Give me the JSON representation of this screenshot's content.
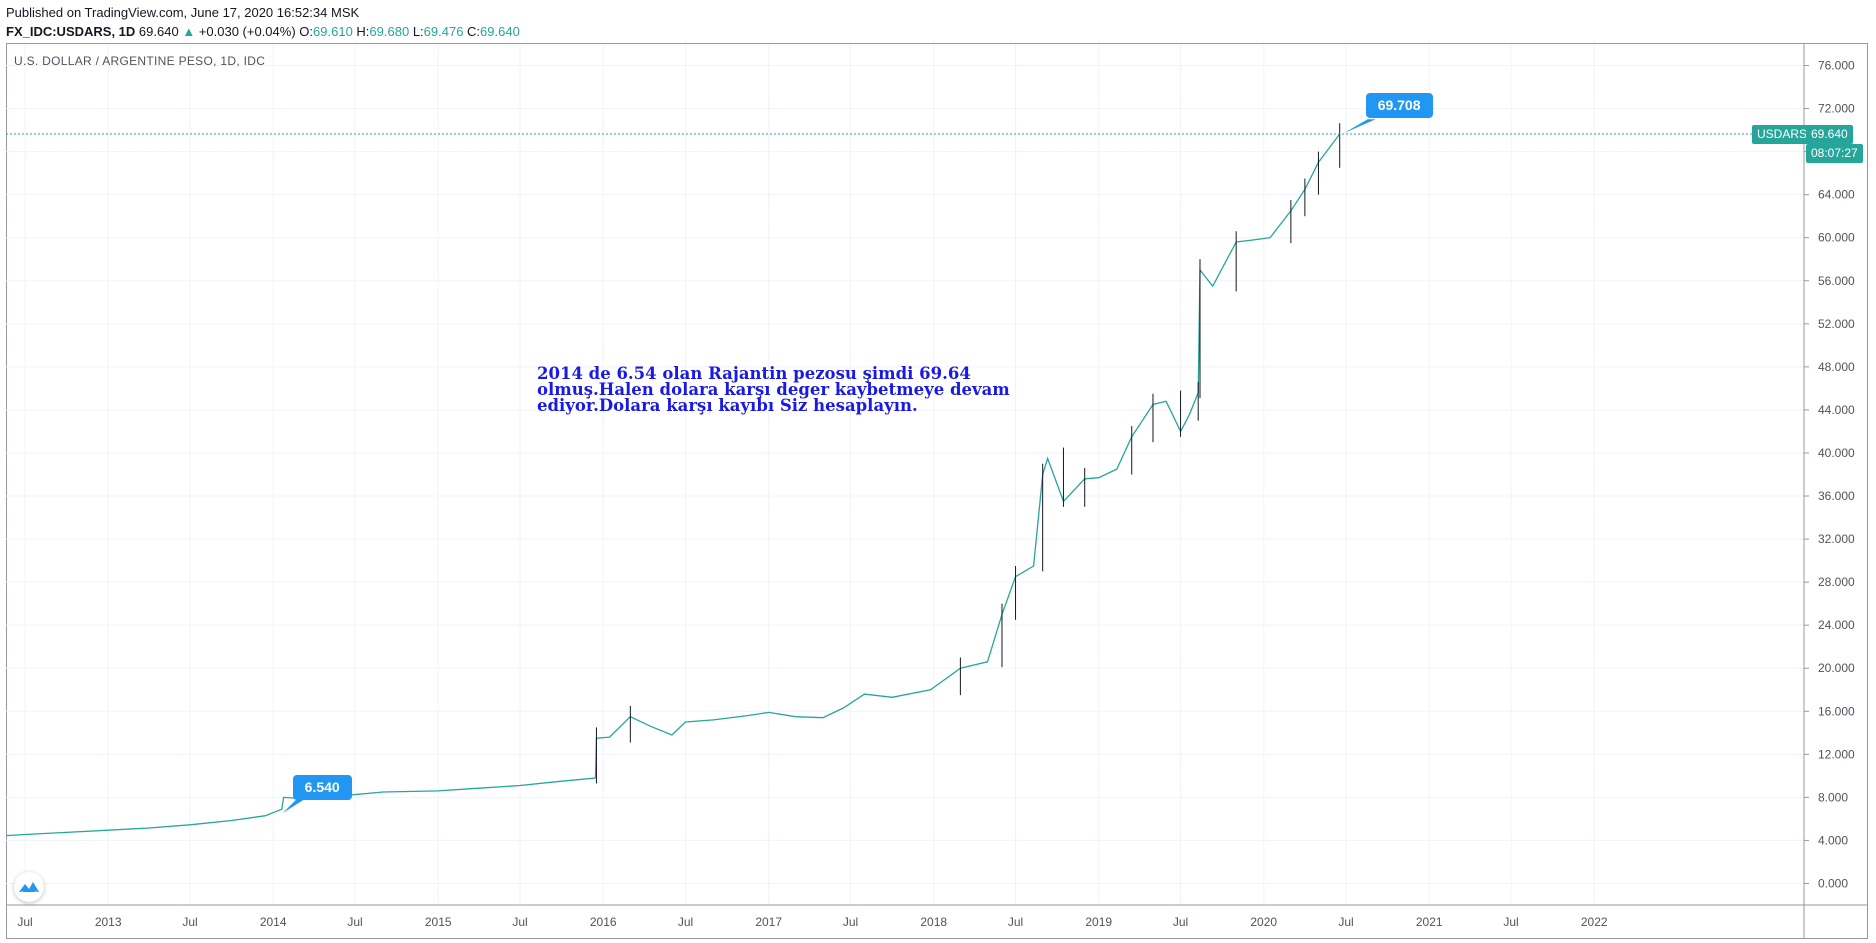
{
  "header": {
    "published": "Published on TradingView.com, June 17, 2020 16:52:34 MSK",
    "symbol": "FX_IDC:USDARS, 1D",
    "last": "69.640",
    "arrow": "▲",
    "change": "+0.030 (+0.04%)",
    "o_label": "O:",
    "o_val": "69.610",
    "h_label": "H:",
    "h_val": "69.680",
    "l_label": "L:",
    "l_val": "69.476",
    "c_label": "C:",
    "c_val": "69.640"
  },
  "chart_title": "U.S. DOLLAR / ARGENTINE PESO, 1D, IDC",
  "annotation": {
    "lines": [
      "2014 de   6.54 olan Rajantin pezosu şimdi 69.64",
      "olmuş.Halen dolara karşı deger kaybetmeye devam",
      "ediyor.Dolara karşı kayıbı Siz hesaplayın."
    ]
  },
  "callouts": {
    "low": "6.540",
    "high": "69.708"
  },
  "price_tags": {
    "symbol": "USDARS",
    "price": "69.640",
    "countdown": "08:07:27"
  },
  "logo": "tradingview-logo-icon",
  "colors": {
    "line": "#26a69a",
    "up": "#26a69a",
    "down": "#ef5350",
    "callout": "#2196f3",
    "annotation": "#1a1ae6",
    "grid": "#f0f3fa"
  },
  "chart_data": {
    "type": "line",
    "title": "U.S. DOLLAR / ARGENTINE PESO, 1D, IDC",
    "xlabel": "",
    "ylabel": "",
    "ylim": [
      -2,
      78
    ],
    "xlim": [
      "2012-05-20",
      "2023-04-10"
    ],
    "y_ticks": [
      "76.000",
      "72.000",
      "68.000",
      "64.000",
      "60.000",
      "56.000",
      "52.000",
      "48.000",
      "44.000",
      "40.000",
      "36.000",
      "32.000",
      "28.000",
      "24.000",
      "20.000",
      "16.000",
      "12.000",
      "8.000",
      "4.000",
      "0.000"
    ],
    "y_tick_values": [
      76,
      72,
      68,
      64,
      60,
      56,
      52,
      48,
      44,
      40,
      36,
      32,
      28,
      24,
      20,
      16,
      12,
      8,
      4,
      0
    ],
    "x_ticks": [
      {
        "label": "Jul",
        "date": "2012-07-01"
      },
      {
        "label": "2013",
        "date": "2013-01-01"
      },
      {
        "label": "Jul",
        "date": "2013-07-01"
      },
      {
        "label": "2014",
        "date": "2014-01-01"
      },
      {
        "label": "Jul",
        "date": "2014-07-01"
      },
      {
        "label": "2015",
        "date": "2015-01-01"
      },
      {
        "label": "Jul",
        "date": "2015-07-01"
      },
      {
        "label": "2016",
        "date": "2016-01-01"
      },
      {
        "label": "Jul",
        "date": "2016-07-01"
      },
      {
        "label": "2017",
        "date": "2017-01-01"
      },
      {
        "label": "Jul",
        "date": "2017-07-01"
      },
      {
        "label": "2018",
        "date": "2018-01-01"
      },
      {
        "label": "Jul",
        "date": "2018-07-01"
      },
      {
        "label": "2019",
        "date": "2019-01-01"
      },
      {
        "label": "Jul",
        "date": "2019-07-01"
      },
      {
        "label": "2020",
        "date": "2020-01-01"
      },
      {
        "label": "Jul",
        "date": "2020-07-01"
      },
      {
        "label": "2021",
        "date": "2021-01-01"
      },
      {
        "label": "Jul",
        "date": "2021-07-01"
      },
      {
        "label": "2022",
        "date": "2022-01-01"
      }
    ],
    "series": [
      {
        "points": [
          [
            "2012-05-20",
            4.45
          ],
          [
            "2012-07-01",
            4.55
          ],
          [
            "2012-10-01",
            4.75
          ],
          [
            "2013-01-01",
            4.95
          ],
          [
            "2013-04-01",
            5.15
          ],
          [
            "2013-07-01",
            5.45
          ],
          [
            "2013-10-01",
            5.85
          ],
          [
            "2013-12-15",
            6.3
          ],
          [
            "2014-01-20",
            6.9
          ],
          [
            "2014-01-24",
            8.0
          ],
          [
            "2014-03-01",
            7.9
          ],
          [
            "2014-06-01",
            8.15
          ],
          [
            "2014-09-01",
            8.5
          ],
          [
            "2015-01-01",
            8.6
          ],
          [
            "2015-04-01",
            8.85
          ],
          [
            "2015-07-01",
            9.1
          ],
          [
            "2015-10-01",
            9.5
          ],
          [
            "2015-12-15",
            9.8
          ],
          [
            "2015-12-17",
            13.5
          ],
          [
            "2016-01-15",
            13.6
          ],
          [
            "2016-03-01",
            15.5
          ],
          [
            "2016-04-15",
            14.6
          ],
          [
            "2016-06-01",
            13.8
          ],
          [
            "2016-07-01",
            15.0
          ],
          [
            "2016-09-01",
            15.2
          ],
          [
            "2016-11-15",
            15.6
          ],
          [
            "2017-01-01",
            15.9
          ],
          [
            "2017-03-01",
            15.5
          ],
          [
            "2017-05-01",
            15.4
          ],
          [
            "2017-06-15",
            16.3
          ],
          [
            "2017-08-01",
            17.6
          ],
          [
            "2017-10-01",
            17.3
          ],
          [
            "2017-12-25",
            18.0
          ],
          [
            "2018-03-01",
            20.0
          ],
          [
            "2018-04-30",
            20.6
          ],
          [
            "2018-06-01",
            25.0
          ],
          [
            "2018-07-01",
            28.5
          ],
          [
            "2018-08-10",
            29.5
          ],
          [
            "2018-08-30",
            38.0
          ],
          [
            "2018-09-10",
            39.5
          ],
          [
            "2018-10-15",
            35.5
          ],
          [
            "2018-12-01",
            37.6
          ],
          [
            "2019-01-01",
            37.7
          ],
          [
            "2019-02-10",
            38.5
          ],
          [
            "2019-03-15",
            41.5
          ],
          [
            "2019-05-01",
            44.5
          ],
          [
            "2019-05-30",
            44.8
          ],
          [
            "2019-07-01",
            42.0
          ],
          [
            "2019-07-20",
            43.5
          ],
          [
            "2019-08-09",
            45.6
          ],
          [
            "2019-08-13",
            57.0
          ],
          [
            "2019-09-10",
            55.5
          ],
          [
            "2019-11-01",
            59.6
          ],
          [
            "2019-12-10",
            59.8
          ],
          [
            "2020-01-15",
            60.0
          ],
          [
            "2020-03-01",
            62.5
          ],
          [
            "2020-04-01",
            64.5
          ],
          [
            "2020-05-01",
            67.0
          ],
          [
            "2020-06-17",
            69.64
          ]
        ]
      }
    ],
    "highlighted_values": [
      {
        "label": "6.540",
        "date": "2014-01-22",
        "value": 6.54
      },
      {
        "label": "69.708",
        "date": "2020-06-17",
        "value": 69.708
      }
    ],
    "last_price": 69.64,
    "grid": true,
    "price_axis": "right"
  }
}
